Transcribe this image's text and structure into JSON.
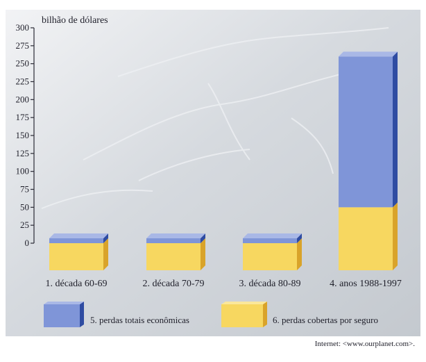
{
  "chart_data": {
    "type": "bar",
    "stacked": true,
    "ylabel": "bilhão de dólares",
    "ylim": [
      0,
      300
    ],
    "yticks": [
      0,
      25,
      50,
      75,
      100,
      125,
      150,
      175,
      200,
      225,
      250,
      275,
      300
    ],
    "categories": [
      "1. década 60-69",
      "2. década 70-79",
      "3. década 80-89",
      "4. anos 1988-1997"
    ],
    "series": [
      {
        "name": "6. perdas cobertas por seguro",
        "values": [
          0,
          0,
          0,
          50
        ],
        "color": "#f7d760"
      },
      {
        "name": "5. perdas totais econômicas",
        "values": [
          0,
          0,
          0,
          260
        ],
        "color": "#7f95d8"
      }
    ],
    "legend_position": "bottom",
    "grid": false
  },
  "source": "Internet: <www.ourplanet.com>."
}
